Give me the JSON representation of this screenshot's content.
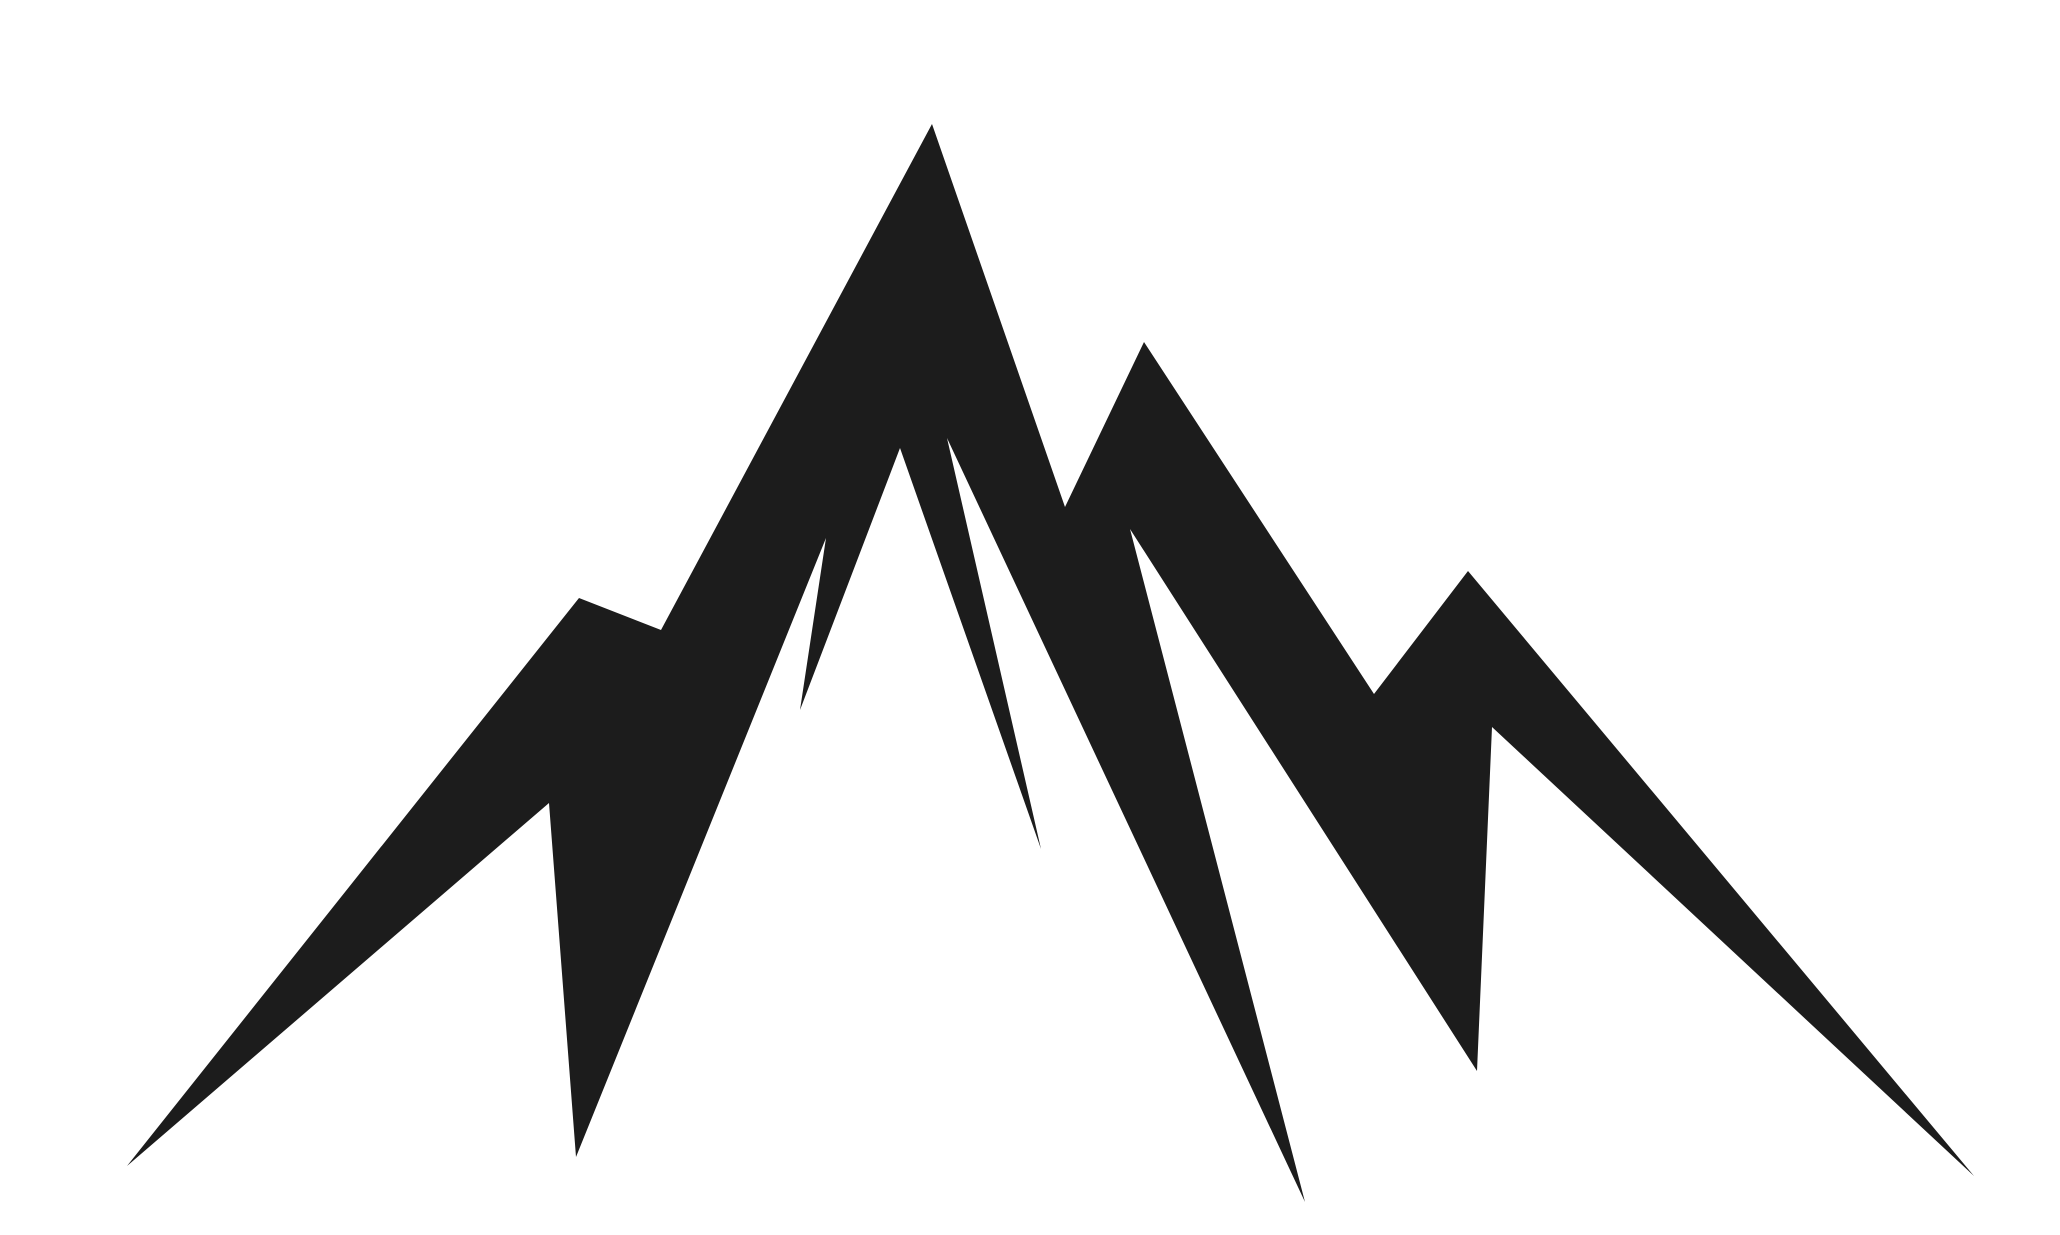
{
  "image": {
    "subject": "mountain-silhouette-icon",
    "colors": {
      "background": "#ffffff",
      "fill": "#1c1c1c"
    }
  }
}
